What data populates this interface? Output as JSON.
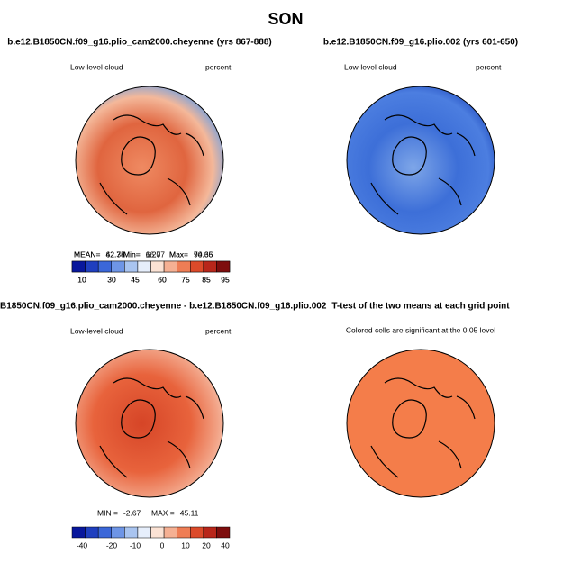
{
  "title": "SON",
  "panels": [
    {
      "title": "b.e12.B1850CN.f09_g16.plio_cam2000.cheyenne (yrs 867-888)",
      "left_label": "Low-level cloud",
      "right_label": "percent",
      "stats": [
        {
          "label": "MEAN=",
          "value": "62.74"
        },
        {
          "label": "Min=",
          "value": "16.77"
        },
        {
          "label": "Max=",
          "value": "90.36"
        }
      ],
      "colorbar": [
        10,
        30,
        45,
        60,
        75,
        85,
        95
      ]
    },
    {
      "title": "b.e12.B1850CN.f09_g16.plio.002 (yrs 601-650)",
      "left_label": "Low-level cloud",
      "right_label": "percent",
      "stats": [
        {
          "label": "MEAN=",
          "value": "42.35"
        },
        {
          "label": "Min=",
          "value": "6.20"
        },
        {
          "label": "Max=",
          "value": "74.65"
        }
      ],
      "colorbar": [
        10,
        30,
        45,
        60,
        75,
        85,
        95
      ]
    },
    {
      "title": "B1850CN.f09_g16.plio_cam2000.cheyenne - b.e12.B1850CN.f09_g16.plio.002",
      "left_label": "Low-level cloud",
      "right_label": "percent",
      "stats": [
        {
          "label": "MIN =",
          "value": "-2.67"
        },
        {
          "label": "MAX =",
          "value": "45.11"
        }
      ],
      "colorbar": [
        -40,
        -20,
        -10,
        0,
        10,
        20,
        40
      ]
    },
    {
      "title": "T-test of the two means at each grid point",
      "note": "Colored cells are significant at the 0.05 level"
    }
  ]
}
